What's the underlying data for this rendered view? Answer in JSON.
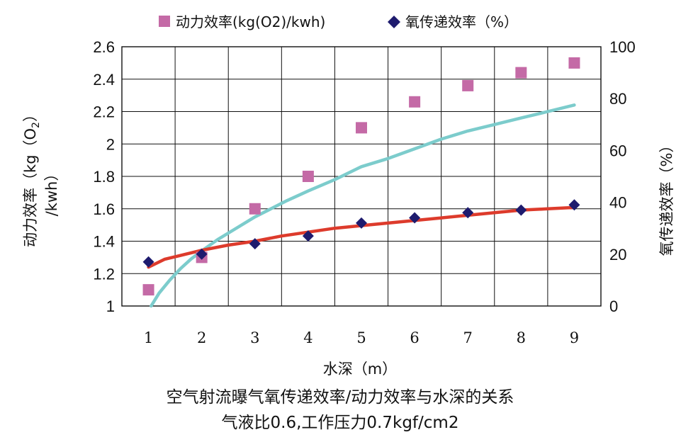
{
  "chart_data": {
    "type": "scatter",
    "legend": [
      {
        "label": "动力效率(kg(O2)/kwh)",
        "marker": "square",
        "color": "#c46aa6"
      },
      {
        "label": "氧传递效率（%）",
        "marker": "diamond",
        "color": "#1e1b6e"
      }
    ],
    "legend_position": "top",
    "x": [
      1,
      2,
      3,
      4,
      5,
      6,
      7,
      8,
      9
    ],
    "xlabel": "水深（m）",
    "xlim": [
      0.5,
      9.5
    ],
    "x_ticks": [
      "1",
      "2",
      "3",
      "4",
      "5",
      "6",
      "7",
      "8",
      "9"
    ],
    "y_left": {
      "label_line1": "动力效率（kg（O",
      "label_sub": "2",
      "label_line1_end": "）",
      "label_line2": "/kwh）",
      "ylim": [
        1.0,
        2.6
      ],
      "ticks": [
        "1",
        "1.2",
        "1.4",
        "1.6",
        "1.8",
        "2",
        "2.2",
        "2.4",
        "2.6"
      ]
    },
    "y_right": {
      "label": "氧传递效率（%）",
      "ylim": [
        0,
        100
      ],
      "ticks": [
        "0",
        "20",
        "40",
        "60",
        "80",
        "100"
      ]
    },
    "grid": true,
    "series": [
      {
        "name": "动力效率(kg(O2)/kwh)",
        "axis": "left",
        "marker": "square",
        "color": "#c46aa6",
        "values": [
          1.1,
          1.3,
          1.6,
          1.8,
          2.1,
          2.26,
          2.36,
          2.44,
          2.5
        ],
        "trend_color": "#7ccccc",
        "trend": [
          [
            1.05,
            1.0
          ],
          [
            1.2,
            1.08
          ],
          [
            1.4,
            1.16
          ],
          [
            1.6,
            1.23
          ],
          [
            1.8,
            1.29
          ],
          [
            2.0,
            1.34
          ],
          [
            2.3,
            1.41
          ],
          [
            2.6,
            1.47
          ],
          [
            3.0,
            1.55
          ],
          [
            3.3,
            1.6
          ],
          [
            3.6,
            1.65
          ],
          [
            4.0,
            1.71
          ],
          [
            4.5,
            1.78
          ],
          [
            5.0,
            1.86
          ],
          [
            5.5,
            1.91
          ],
          [
            6.0,
            1.97
          ],
          [
            6.5,
            2.03
          ],
          [
            7.0,
            2.08
          ],
          [
            7.5,
            2.12
          ],
          [
            8.0,
            2.16
          ],
          [
            8.5,
            2.2
          ],
          [
            9.0,
            2.24
          ]
        ]
      },
      {
        "name": "氧传递效率（%）",
        "axis": "right",
        "marker": "diamond",
        "color": "#1e1b6e",
        "values": [
          17,
          20,
          24,
          27,
          32,
          34,
          36,
          37,
          39
        ],
        "trend_color": "#dd3b2c",
        "trend": [
          [
            1.0,
            15
          ],
          [
            1.3,
            18
          ],
          [
            1.7,
            20
          ],
          [
            2.0,
            21.5
          ],
          [
            2.5,
            23.5
          ],
          [
            3.0,
            25
          ],
          [
            3.5,
            27
          ],
          [
            4.0,
            28.5
          ],
          [
            4.5,
            30
          ],
          [
            5.0,
            31
          ],
          [
            5.5,
            32
          ],
          [
            6.0,
            33
          ],
          [
            6.5,
            34
          ],
          [
            7.0,
            35
          ],
          [
            7.5,
            36
          ],
          [
            8.0,
            37
          ],
          [
            8.5,
            37.5
          ],
          [
            9.0,
            38
          ]
        ]
      }
    ],
    "caption_line1": "空气射流曝气氧传递效率/动力效率与水深的关系",
    "caption_line2": "气液比0.6,工作压力0.7kgf/cm2"
  }
}
